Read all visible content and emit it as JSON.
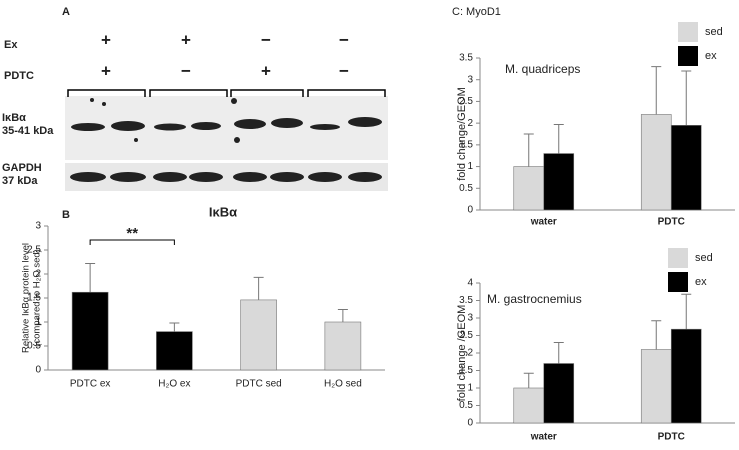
{
  "blot": {
    "panel": "A",
    "conditions": [
      {
        "name": "Ex",
        "signs": [
          "+",
          "+",
          "−",
          "−"
        ]
      },
      {
        "name": "PDTC",
        "signs": [
          "+",
          "−",
          "+",
          "−"
        ]
      }
    ],
    "bands": [
      {
        "name": "IκBα",
        "size": "35-41 kDa"
      },
      {
        "name": "GAPDH",
        "size": "37 kDa"
      }
    ]
  },
  "panel_c_title": "C: MyoD1",
  "chart_data": [
    {
      "type": "bar",
      "panel": "B",
      "title": "IκBα",
      "ylabel": [
        "Relative IκBα protein level",
        "(compared to H₂O sed)"
      ],
      "categories": [
        "PDTC ex",
        "H₂O ex",
        "PDTC sed",
        "H₂O  sed"
      ],
      "values": [
        1.62,
        0.8,
        1.46,
        1.0
      ],
      "errors": [
        0.6,
        0.18,
        0.47,
        0.26
      ],
      "colors": [
        "#000000",
        "#000000",
        "#d9d9d9",
        "#d9d9d9"
      ],
      "ylim": [
        0,
        3
      ],
      "yticks": [
        0,
        0.5,
        1,
        1.5,
        2,
        2.5,
        3
      ],
      "annotation": "**",
      "grid": false
    },
    {
      "type": "bar",
      "title": "M. quadriceps",
      "ylabel": "fold change/GEOM",
      "categories": [
        "water",
        "PDTC"
      ],
      "series": [
        {
          "name": "sed",
          "color": "#d9d9d9",
          "values": [
            1.0,
            2.2
          ],
          "errors": [
            0.75,
            1.1
          ]
        },
        {
          "name": "ex",
          "color": "#000000",
          "values": [
            1.3,
            1.95
          ],
          "errors": [
            0.67,
            1.25
          ]
        }
      ],
      "ylim": [
        0,
        3.5
      ],
      "yticks": [
        0,
        0.5,
        1,
        1.5,
        2,
        2.5,
        3,
        3.5
      ],
      "legend": "top-right",
      "grid": false
    },
    {
      "type": "bar",
      "title": "M. gastrocnemius",
      "ylabel": "fold change /GEOM",
      "categories": [
        "water",
        "PDTC"
      ],
      "series": [
        {
          "name": "sed",
          "color": "#d9d9d9",
          "values": [
            1.0,
            2.1
          ],
          "errors": [
            0.42,
            0.82
          ]
        },
        {
          "name": "ex",
          "color": "#000000",
          "values": [
            1.7,
            2.68
          ],
          "errors": [
            0.6,
            1.0
          ]
        }
      ],
      "ylim": [
        0,
        4
      ],
      "yticks": [
        0,
        0.5,
        1,
        1.5,
        2,
        2.5,
        3,
        3.5,
        4
      ],
      "legend": "top-right",
      "grid": false
    }
  ]
}
